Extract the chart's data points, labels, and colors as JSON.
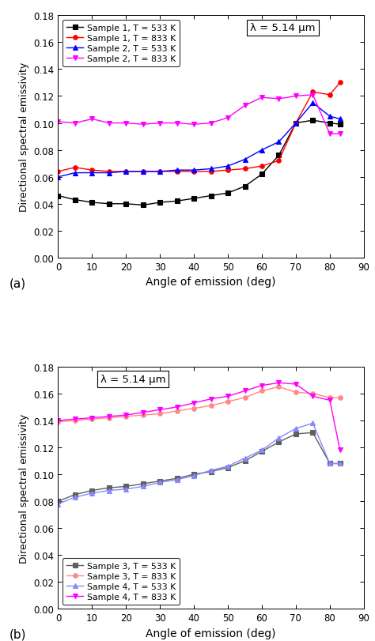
{
  "plot_a": {
    "xlabel": "Angle of emission (deg)",
    "ylabel": "Directional spectral emissivity",
    "xlim": [
      0,
      90
    ],
    "ylim": [
      0.0,
      0.18
    ],
    "yticks": [
      0.0,
      0.02,
      0.04,
      0.06,
      0.08,
      0.1,
      0.12,
      0.14,
      0.16,
      0.18
    ],
    "xticks": [
      0,
      10,
      20,
      30,
      40,
      50,
      60,
      70,
      80,
      90
    ],
    "annotation": "λ = 5.14 μm",
    "series": [
      {
        "label": "Sample 1, T = 533 K",
        "color": "#000000",
        "marker": "s",
        "markersize": 4,
        "x": [
          0,
          5,
          10,
          15,
          20,
          25,
          30,
          35,
          40,
          45,
          50,
          55,
          60,
          65,
          70,
          75,
          80,
          83
        ],
        "y": [
          0.046,
          0.043,
          0.041,
          0.04,
          0.04,
          0.039,
          0.041,
          0.042,
          0.044,
          0.046,
          0.048,
          0.053,
          0.062,
          0.076,
          0.1,
          0.102,
          0.1,
          0.099
        ]
      },
      {
        "label": "Sample 1, T = 833 K",
        "color": "#ff0000",
        "marker": "o",
        "markersize": 4,
        "x": [
          0,
          5,
          10,
          15,
          20,
          25,
          30,
          35,
          40,
          45,
          50,
          55,
          60,
          65,
          70,
          75,
          80,
          83
        ],
        "y": [
          0.064,
          0.067,
          0.065,
          0.064,
          0.064,
          0.064,
          0.064,
          0.064,
          0.064,
          0.064,
          0.065,
          0.066,
          0.068,
          0.072,
          0.1,
          0.123,
          0.121,
          0.13
        ]
      },
      {
        "label": "Sample 2, T = 533 K",
        "color": "#0000ff",
        "marker": "^",
        "markersize": 4,
        "x": [
          0,
          5,
          10,
          15,
          20,
          25,
          30,
          35,
          40,
          45,
          50,
          55,
          60,
          65,
          70,
          75,
          80,
          83
        ],
        "y": [
          0.06,
          0.063,
          0.063,
          0.063,
          0.064,
          0.064,
          0.064,
          0.065,
          0.065,
          0.066,
          0.068,
          0.073,
          0.08,
          0.086,
          0.1,
          0.115,
          0.105,
          0.103
        ]
      },
      {
        "label": "Sample 2, T = 833 K",
        "color": "#ff00ff",
        "marker": "v",
        "markersize": 4,
        "x": [
          0,
          5,
          10,
          15,
          20,
          25,
          30,
          35,
          40,
          45,
          50,
          55,
          60,
          65,
          70,
          75,
          80,
          83
        ],
        "y": [
          0.101,
          0.1,
          0.103,
          0.1,
          0.1,
          0.099,
          0.1,
          0.1,
          0.099,
          0.1,
          0.104,
          0.113,
          0.119,
          0.118,
          0.12,
          0.121,
          0.092,
          0.092
        ]
      }
    ]
  },
  "plot_b": {
    "xlabel": "Angle of emission (deg)",
    "ylabel": "Directional spectral emissivity",
    "xlim": [
      0,
      90
    ],
    "ylim": [
      0.0,
      0.18
    ],
    "yticks": [
      0.0,
      0.02,
      0.04,
      0.06,
      0.08,
      0.1,
      0.12,
      0.14,
      0.16,
      0.18
    ],
    "xticks": [
      0,
      10,
      20,
      30,
      40,
      50,
      60,
      70,
      80,
      90
    ],
    "annotation": "λ = 5.14 μm",
    "series": [
      {
        "label": "Sample 3, T = 533 K",
        "color": "#606060",
        "marker": "s",
        "markersize": 4,
        "x": [
          0,
          5,
          10,
          15,
          20,
          25,
          30,
          35,
          40,
          45,
          50,
          55,
          60,
          65,
          70,
          75,
          80,
          83
        ],
        "y": [
          0.08,
          0.085,
          0.088,
          0.09,
          0.091,
          0.093,
          0.095,
          0.097,
          0.1,
          0.102,
          0.105,
          0.11,
          0.117,
          0.124,
          0.13,
          0.131,
          0.108,
          0.108
        ]
      },
      {
        "label": "Sample 3, T = 833 K",
        "color": "#ff8888",
        "marker": "o",
        "markersize": 4,
        "x": [
          0,
          5,
          10,
          15,
          20,
          25,
          30,
          35,
          40,
          45,
          50,
          55,
          60,
          65,
          70,
          75,
          80,
          83
        ],
        "y": [
          0.139,
          0.14,
          0.141,
          0.142,
          0.143,
          0.144,
          0.145,
          0.147,
          0.149,
          0.151,
          0.154,
          0.157,
          0.162,
          0.165,
          0.161,
          0.16,
          0.157,
          0.157
        ]
      },
      {
        "label": "Sample 4, T = 533 K",
        "color": "#8888ff",
        "marker": "^",
        "markersize": 4,
        "x": [
          0,
          5,
          10,
          15,
          20,
          25,
          30,
          35,
          40,
          45,
          50,
          55,
          60,
          65,
          70,
          75,
          80,
          83
        ],
        "y": [
          0.078,
          0.083,
          0.086,
          0.088,
          0.089,
          0.091,
          0.094,
          0.096,
          0.099,
          0.103,
          0.106,
          0.112,
          0.118,
          0.127,
          0.134,
          0.138,
          0.108,
          0.108
        ]
      },
      {
        "label": "Sample 4, T = 833 K",
        "color": "#ff00ff",
        "marker": "v",
        "markersize": 4,
        "x": [
          0,
          5,
          10,
          15,
          20,
          25,
          30,
          35,
          40,
          45,
          50,
          55,
          60,
          65,
          70,
          75,
          80,
          83
        ],
        "y": [
          0.14,
          0.141,
          0.142,
          0.143,
          0.144,
          0.146,
          0.148,
          0.15,
          0.153,
          0.156,
          0.158,
          0.162,
          0.166,
          0.168,
          0.167,
          0.158,
          0.155,
          0.118
        ]
      }
    ]
  },
  "panel_labels": [
    "(a)",
    "(b)"
  ]
}
